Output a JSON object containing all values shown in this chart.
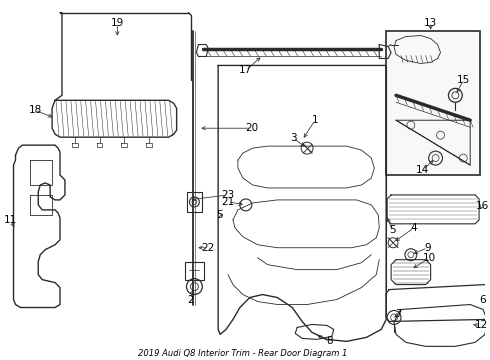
{
  "title": "2019 Audi Q8 Interior Trim - Rear Door Diagram 1",
  "bg_color": "#ffffff",
  "line_color": "#2a2a2a",
  "text_color": "#000000",
  "fig_width": 4.9,
  "fig_height": 3.6,
  "dpi": 100
}
